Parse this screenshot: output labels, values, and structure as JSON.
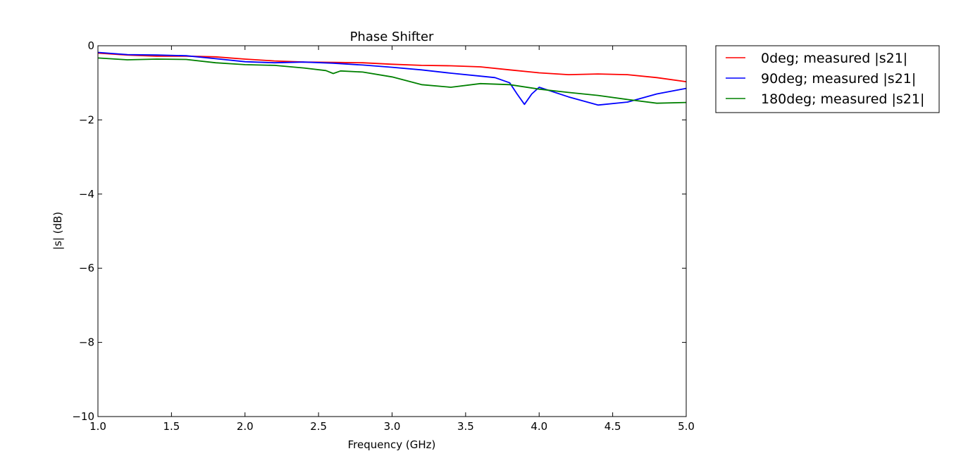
{
  "chart_data": {
    "type": "line",
    "title": "Phase Shifter",
    "xlabel": "Frequency (GHz)",
    "ylabel": "|s| (dB)",
    "xlim": [
      1.0,
      5.0
    ],
    "ylim": [
      -10,
      0
    ],
    "xticks": [
      "1.0",
      "1.5",
      "2.0",
      "2.5",
      "3.0",
      "3.5",
      "4.0",
      "4.5",
      "5.0"
    ],
    "yticks": [
      "0",
      "−2",
      "−4",
      "−6",
      "−8",
      "−10"
    ],
    "grid": false,
    "legend_position": "outside-top-right",
    "series": [
      {
        "name": "0deg; measured |s21|",
        "color": "#ff0000",
        "x": [
          1.0,
          1.2,
          1.4,
          1.6,
          1.8,
          2.0,
          2.2,
          2.4,
          2.6,
          2.8,
          3.0,
          3.2,
          3.4,
          3.6,
          3.8,
          4.0,
          4.2,
          4.4,
          4.6,
          4.8,
          5.0
        ],
        "y": [
          -0.2,
          -0.25,
          -0.28,
          -0.28,
          -0.3,
          -0.36,
          -0.41,
          -0.44,
          -0.45,
          -0.46,
          -0.5,
          -0.53,
          -0.54,
          -0.57,
          -0.65,
          -0.73,
          -0.78,
          -0.76,
          -0.78,
          -0.86,
          -0.97
        ]
      },
      {
        "name": "90deg; measured |s21|",
        "color": "#0000ff",
        "x": [
          1.0,
          1.2,
          1.4,
          1.6,
          1.8,
          2.0,
          2.2,
          2.4,
          2.6,
          2.8,
          3.0,
          3.2,
          3.4,
          3.6,
          3.7,
          3.8,
          3.85,
          3.9,
          3.95,
          4.0,
          4.2,
          4.4,
          4.6,
          4.8,
          5.0
        ],
        "y": [
          -0.18,
          -0.24,
          -0.25,
          -0.27,
          -0.35,
          -0.43,
          -0.46,
          -0.44,
          -0.47,
          -0.52,
          -0.58,
          -0.65,
          -0.74,
          -0.82,
          -0.86,
          -1.0,
          -1.3,
          -1.58,
          -1.3,
          -1.12,
          -1.38,
          -1.6,
          -1.52,
          -1.3,
          -1.15
        ]
      },
      {
        "name": "180deg; measured |s21|",
        "color": "#008000",
        "x": [
          1.0,
          1.2,
          1.4,
          1.6,
          1.8,
          2.0,
          2.2,
          2.4,
          2.55,
          2.6,
          2.65,
          2.8,
          3.0,
          3.2,
          3.4,
          3.6,
          3.8,
          4.0,
          4.2,
          4.4,
          4.6,
          4.8,
          5.0
        ],
        "y": [
          -0.33,
          -0.38,
          -0.36,
          -0.37,
          -0.46,
          -0.51,
          -0.53,
          -0.6,
          -0.67,
          -0.75,
          -0.68,
          -0.71,
          -0.84,
          -1.05,
          -1.12,
          -1.02,
          -1.05,
          -1.17,
          -1.26,
          -1.34,
          -1.45,
          -1.55,
          -1.53
        ]
      }
    ]
  }
}
